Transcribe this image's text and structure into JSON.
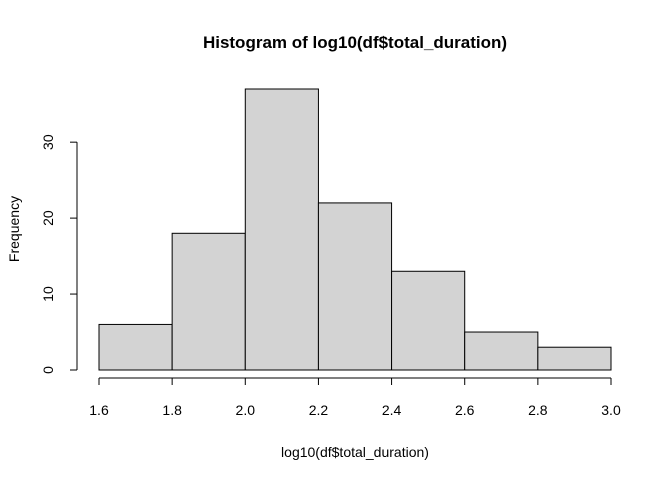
{
  "chart_data": {
    "type": "bar",
    "title": "Histogram of log10(df$total_duration)",
    "xlabel": "log10(df$total_duration)",
    "ylabel": "Frequency",
    "bins": [
      {
        "from": 1.6,
        "to": 1.8,
        "count": 6
      },
      {
        "from": 1.8,
        "to": 2.0,
        "count": 18
      },
      {
        "from": 2.0,
        "to": 2.2,
        "count": 37
      },
      {
        "from": 2.2,
        "to": 2.4,
        "count": 22
      },
      {
        "from": 2.4,
        "to": 2.6,
        "count": 13
      },
      {
        "from": 2.6,
        "to": 2.8,
        "count": 5
      },
      {
        "from": 2.8,
        "to": 3.0,
        "count": 3
      }
    ],
    "xlim": [
      1.6,
      3.0
    ],
    "x_ticks": [
      "1.6",
      "1.8",
      "2.0",
      "2.2",
      "2.4",
      "2.6",
      "2.8",
      "3.0"
    ],
    "ylim": [
      0,
      37
    ],
    "y_ticks": [
      "0",
      "10",
      "20",
      "30"
    ],
    "bar_fill": "#d3d3d3",
    "bar_stroke": "#000000",
    "grid": false,
    "legend": false
  }
}
